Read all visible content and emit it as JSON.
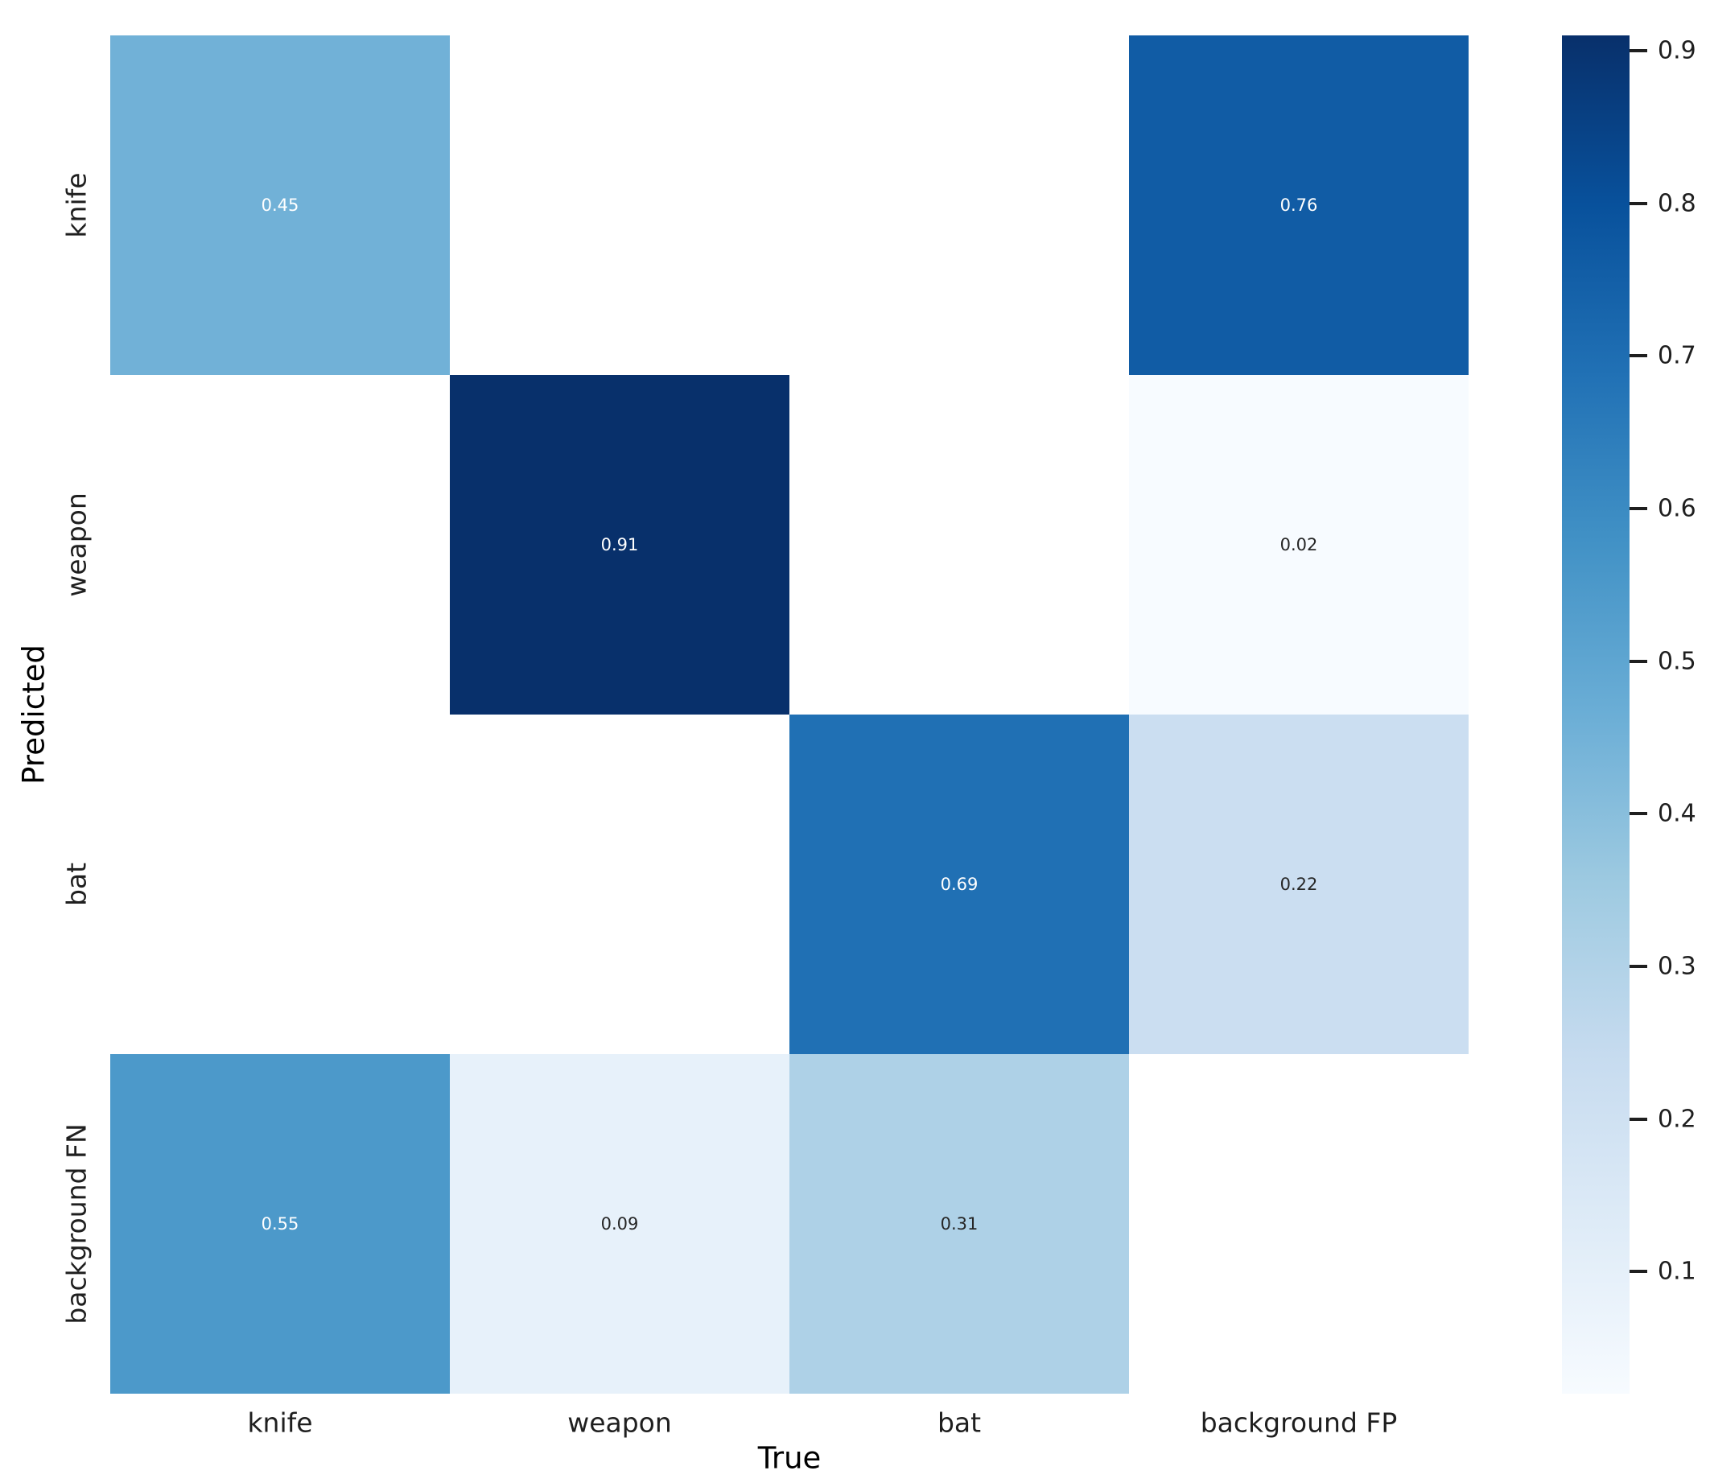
{
  "chart_data": {
    "type": "heatmap",
    "title": "",
    "xlabel": "True",
    "ylabel": "Predicted",
    "x_categories": [
      "knife",
      "weapon",
      "bat",
      "background FP"
    ],
    "y_categories": [
      "knife",
      "weapon",
      "bat",
      "background FN"
    ],
    "matrix": [
      [
        0.45,
        null,
        null,
        0.76
      ],
      [
        null,
        0.91,
        null,
        0.02
      ],
      [
        null,
        null,
        0.69,
        0.22
      ],
      [
        0.55,
        0.09,
        0.31,
        null
      ]
    ],
    "cell_labels": [
      [
        "0.45",
        "",
        "",
        "0.76"
      ],
      [
        "",
        "0.91",
        "",
        "0.02"
      ],
      [
        "",
        "",
        "0.69",
        "0.22"
      ],
      [
        "0.55",
        "0.09",
        "0.31",
        ""
      ]
    ],
    "cell_colors": [
      [
        "#71b1d7",
        "#ffffff",
        "#ffffff",
        "#115ca5"
      ],
      [
        "#ffffff",
        "#08306b",
        "#ffffff",
        "#f7fbff"
      ],
      [
        "#ffffff",
        "#ffffff",
        "#2070b4",
        "#cbdef1"
      ],
      [
        "#4c99ca",
        "#e7f1fa",
        "#aed1e7",
        "#ffffff"
      ]
    ],
    "cell_text_colors": [
      [
        "#ffffff",
        "",
        "",
        "#ffffff"
      ],
      [
        "",
        "#ffffff",
        "",
        "#262626"
      ],
      [
        "",
        "",
        "#ffffff",
        "#262626"
      ],
      [
        "#ffffff",
        "#262626",
        "#262626",
        ""
      ]
    ],
    "colorbar": {
      "vmin": 0.02,
      "vmax": 0.91,
      "tick_values": [
        0.1,
        0.2,
        0.3,
        0.4,
        0.5,
        0.6,
        0.7,
        0.8,
        0.9
      ],
      "tick_labels": [
        "0.1",
        "0.2",
        "0.3",
        "0.4",
        "0.5",
        "0.6",
        "0.7",
        "0.8",
        "0.9"
      ],
      "gradient_top_to_bottom": [
        "#08306b",
        "#08519c",
        "#2171b5",
        "#4292c6",
        "#6baed6",
        "#9ecae1",
        "#c6dbef",
        "#deebf7",
        "#f7fbff"
      ],
      "tick_color": "#1f1f1f"
    },
    "colormap_name": "Blues",
    "background_color": "#ffffff",
    "annotation_colors": {
      "light_text": "#ffffff",
      "dark_text": "#262626"
    },
    "legend_position": "right-colorbar",
    "grid": false
  }
}
